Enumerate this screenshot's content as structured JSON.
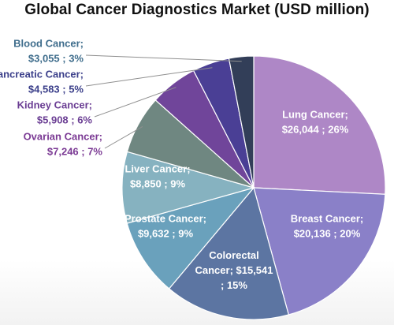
{
  "chart_data": {
    "type": "pie",
    "title": "Global Cancer Diagnostics Market (USD million)",
    "slices": [
      {
        "name": "Lung Cancer",
        "value": 26044,
        "percent": 26,
        "color": "#ae87c6",
        "label_lines": [
          "Lung Cancer;",
          "$26,044 ; 26%"
        ],
        "label_color": "#ffffff"
      },
      {
        "name": "Breast Cancer",
        "value": 20136,
        "percent": 20,
        "color": "#8a80c8",
        "label_lines": [
          "Breast Cancer;",
          "$20,136 ; 20%"
        ],
        "label_color": "#ffffff"
      },
      {
        "name": "Colorectal Cancer",
        "value": 15541,
        "percent": 15,
        "color": "#5c75a2",
        "label_lines": [
          "Colorectal",
          "Cancer;  $15,541",
          "; 15%"
        ],
        "label_color": "#ffffff"
      },
      {
        "name": "Prostate Cancer",
        "value": 9632,
        "percent": 9,
        "color": "#6aa1bc",
        "label_lines": [
          "Prostate Cancer;",
          "$9,632 ; 9%"
        ],
        "label_color": "#ffffff"
      },
      {
        "name": "Liver Cancer",
        "value": 8850,
        "percent": 9,
        "color": "#86b2c0",
        "label_lines": [
          "Liver Cancer;",
          "$8,850 ; 9%"
        ],
        "label_color": "#ffffff"
      },
      {
        "name": "Ovarian Cancer",
        "value": 7246,
        "percent": 7,
        "color": "#6f8781",
        "label_lines": [
          "Ovarian Cancer;",
          "$7,246 ; 7%"
        ],
        "label_color": "#7b3a94"
      },
      {
        "name": "Kidney Cancer",
        "value": 5908,
        "percent": 6,
        "color": "#70459a",
        "label_lines": [
          "Kidney Cancer;",
          "$5,908 ; 6%"
        ],
        "label_color": "#6a3d93"
      },
      {
        "name": "Pancreatic Cancer",
        "value": 4583,
        "percent": 5,
        "color": "#4a3f95",
        "label_lines": [
          "Pancreatic Cancer;",
          "$4,583 ; 5%"
        ],
        "label_color": "#3b3f8a"
      },
      {
        "name": "Blood Cancer",
        "value": 3055,
        "percent": 3,
        "color": "#323e58",
        "label_lines": [
          "Blood Cancer;",
          "$3,055 ; 3%"
        ],
        "label_color": "#3f6d8c"
      }
    ]
  }
}
